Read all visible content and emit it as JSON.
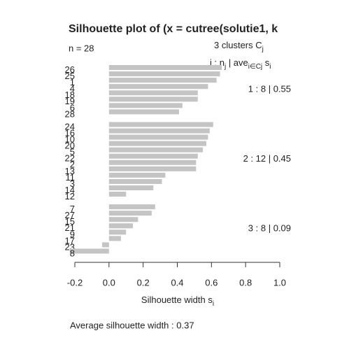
{
  "chart_data": {
    "type": "silhouette",
    "title": "Silhouette plot of (x = cutree(solutie1, k",
    "subtitle": "n = 28",
    "header": [
      {
        "text": "3  clusters  C"
      },
      {
        "text": "j",
        "sub": true
      }
    ],
    "legend_header": [
      {
        "text": "j :  n"
      },
      {
        "text": "j",
        "sub": true
      },
      {
        "text": " | ave"
      },
      {
        "text": "i∈Cj",
        "sub": true
      },
      {
        "text": "  s"
      },
      {
        "text": "i",
        "sub": true
      }
    ],
    "x_label": [
      {
        "text": "Silhouette width s"
      },
      {
        "text": "i",
        "sub": true
      }
    ],
    "footer": "Average silhouette width :  0.37",
    "color": "#c4c4c4",
    "xlim": [
      -0.2,
      1.0
    ],
    "xticks": [
      -0.2,
      {
        "value": 0,
        "label": "0.0"
      },
      0.2,
      0.4,
      0.6,
      0.8,
      {
        "value": 1,
        "label": "1.0"
      }
    ],
    "series": [
      {
        "label": "1 :  8  |  0.55",
        "categories": [
          "26",
          "25",
          "1",
          "4",
          "18",
          "19",
          "6",
          "28"
        ],
        "values": [
          0.66,
          0.65,
          0.63,
          0.58,
          0.52,
          0.52,
          0.43,
          0.41
        ]
      },
      {
        "label": "2 :  12  |  0.45",
        "categories": [
          "24",
          "16",
          "10",
          "20",
          "5",
          "22",
          "2",
          "13",
          "11",
          "3",
          "14",
          "12"
        ],
        "values": [
          0.61,
          0.59,
          0.58,
          0.57,
          0.55,
          0.52,
          0.51,
          0.51,
          0.33,
          0.31,
          0.26,
          0.1
        ]
      },
      {
        "label": "3 :  8  |  0.09",
        "categories": [
          "7",
          "27",
          "15",
          "21",
          "9",
          "17",
          "23",
          "8"
        ],
        "values": [
          0.27,
          0.25,
          0.17,
          0.14,
          0.1,
          0.07,
          -0.04,
          -0.23
        ]
      }
    ]
  }
}
